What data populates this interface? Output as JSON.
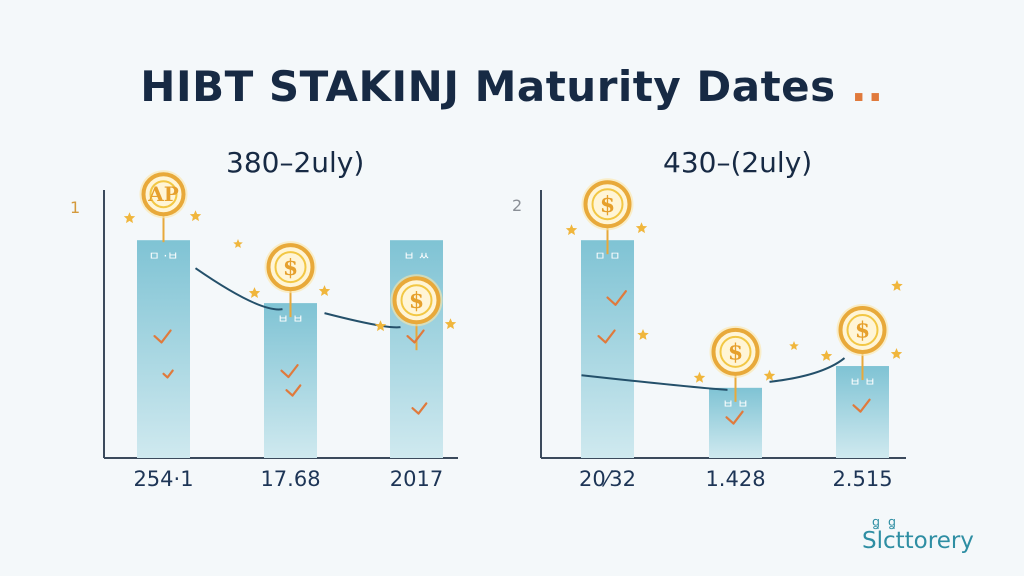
{
  "title": {
    "text": "HIBT STAKINJ Maturity Dates",
    "dots": ".."
  },
  "brand": {
    "text": "Slcttorery",
    "mark": "ꬶ ꬶ"
  },
  "colors": {
    "bar": "#a9d6e1",
    "bar_top": "#7fc3d4",
    "axis": "#3b4a5c",
    "line": "#24506a",
    "coin": "#f2c744",
    "coin_ring": "#e8a93a",
    "accent": "#e07a3c",
    "star": "#f0b63c",
    "panel_num": "#d49a3c"
  },
  "icons": [
    "coin-dollar-icon",
    "star-icon",
    "checkmark-icon"
  ],
  "chart_data": [
    {
      "type": "bar",
      "panel_label": "1",
      "title": "380–2uly)",
      "categories": [
        "254·1",
        "17.68",
        "2017"
      ],
      "values": [
        90,
        64,
        90
      ],
      "bar_labels": [
        "ㅁ ·ㅂ",
        "ㅂ ㅂ",
        "ㅂ ㅆ"
      ],
      "ylim": [
        0,
        100
      ],
      "coin_labels": [
        "AP",
        "$",
        "$"
      ],
      "grid": false
    },
    {
      "type": "bar",
      "panel_label": "2",
      "title": "430–(2uly)",
      "categories": [
        "20⁄32",
        "1.428",
        "2.515"
      ],
      "values": [
        90,
        29,
        38
      ],
      "bar_labels": [
        "ㅁ ㅁ",
        "ㅂ ㅂ",
        "ㅂ ㅂ"
      ],
      "ylim": [
        0,
        100
      ],
      "coin_labels": [
        "$",
        "$",
        "$"
      ],
      "grid": false
    }
  ]
}
